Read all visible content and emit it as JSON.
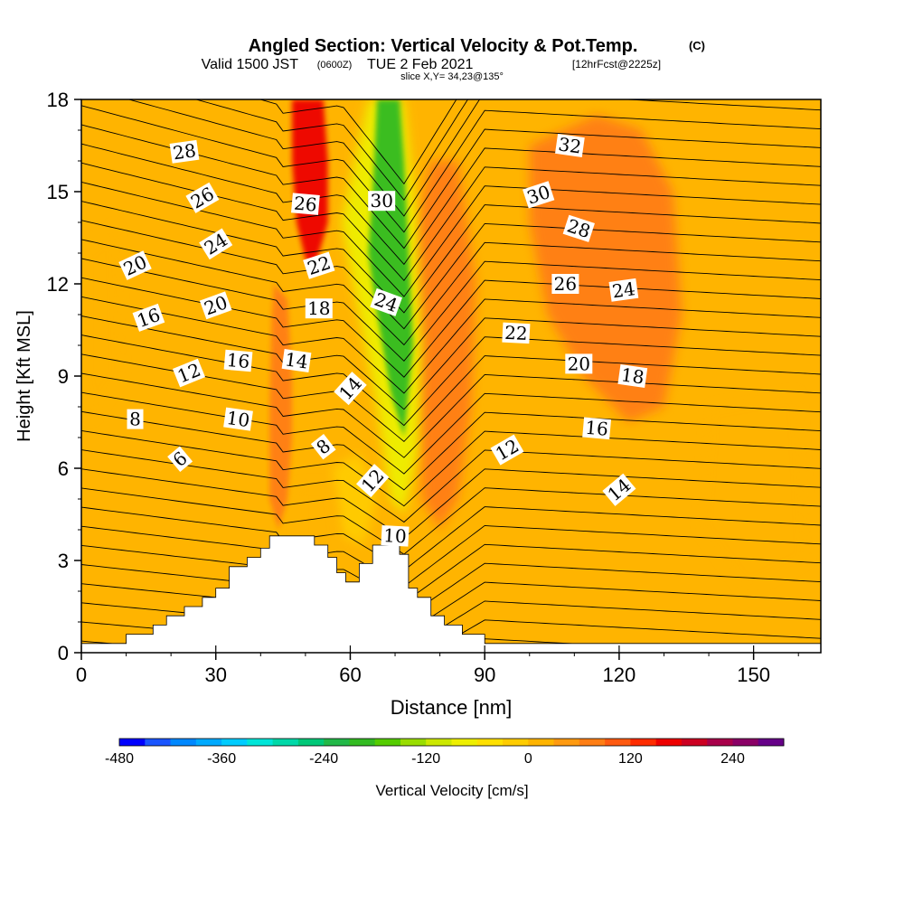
{
  "header": {
    "title_main": "Angled Section: Vertical Velocity & Pot.Temp.",
    "title_tag": "(C)",
    "valid_a": "Valid 1500 JST",
    "valid_b": "(0600Z)",
    "valid_c": "TUE 2 Feb 2021",
    "valid_d": "[12hrFcst@2225z]",
    "slice": "slice X,Y= 34,23@135°"
  },
  "chart_data": {
    "type": "heatmap",
    "title": "Angled Section: Vertical Velocity & Pot.Temp.",
    "xlabel": "Distance [nm]",
    "ylabel": "Height [Kft MSL]",
    "xlim": [
      0,
      165
    ],
    "ylim": [
      0,
      18
    ],
    "xticks": [
      0,
      30,
      60,
      90,
      120,
      150
    ],
    "yticks": [
      0,
      3,
      6,
      9,
      12,
      15,
      18
    ],
    "field": "Vertical Velocity",
    "colorbar": {
      "label": "Vertical Velocity [cm/s]",
      "range": [
        -480,
        300
      ],
      "step": 30,
      "tick_labels": [
        "-480",
        "-360",
        "-240",
        "-120",
        "0",
        "120",
        "240"
      ],
      "tick_values": [
        -480,
        -360,
        -240,
        -120,
        0,
        120,
        240
      ],
      "colors": [
        "#0000ff",
        "#1a55ff",
        "#0088ff",
        "#00aaff",
        "#00ccff",
        "#00e5d8",
        "#00d8a8",
        "#00c878",
        "#22b848",
        "#33bb22",
        "#55cc00",
        "#99dd00",
        "#cce800",
        "#eeef00",
        "#ffe000",
        "#ffcc00",
        "#ffb400",
        "#ff9a10",
        "#ff7e14",
        "#ff5a10",
        "#ff2c00",
        "#ee0000",
        "#cc0022",
        "#a8004a",
        "#8a0066",
        "#660088"
      ]
    },
    "velocity_regions": [
      {
        "name": "updraft-core-high",
        "value": 150
      },
      {
        "name": "updraft-core-low",
        "value": 80
      },
      {
        "name": "downdraft-core",
        "value": -210
      },
      {
        "name": "downdraft-edge",
        "value": -90
      },
      {
        "name": "lee-updraft",
        "value": 60
      },
      {
        "name": "upper-updraft-east",
        "value": 60
      },
      {
        "name": "weak-sink-left",
        "value": -15
      }
    ],
    "contour_field": "Potential Temperature",
    "contour_labels": [
      {
        "text": "28",
        "x": 23,
        "y": 16.3,
        "angle": 8
      },
      {
        "text": "26",
        "x": 27,
        "y": 14.8,
        "angle": 30
      },
      {
        "text": "24",
        "x": 30,
        "y": 13.3,
        "angle": 32
      },
      {
        "text": "20",
        "x": 12,
        "y": 12.6,
        "angle": 25
      },
      {
        "text": "16",
        "x": 15,
        "y": 10.9,
        "angle": 20
      },
      {
        "text": "20",
        "x": 30,
        "y": 11.3,
        "angle": 20
      },
      {
        "text": "12",
        "x": 24,
        "y": 9.1,
        "angle": 22
      },
      {
        "text": "16",
        "x": 35,
        "y": 9.5,
        "angle": -5
      },
      {
        "text": "14",
        "x": 48,
        "y": 9.5,
        "angle": -8
      },
      {
        "text": "8",
        "x": 12,
        "y": 7.6,
        "angle": 0
      },
      {
        "text": "10",
        "x": 35,
        "y": 7.6,
        "angle": -8
      },
      {
        "text": "6",
        "x": 22,
        "y": 6.3,
        "angle": 40
      },
      {
        "text": "26",
        "x": 50,
        "y": 14.6,
        "angle": -5
      },
      {
        "text": "22",
        "x": 53,
        "y": 12.6,
        "angle": 18
      },
      {
        "text": "18",
        "x": 53,
        "y": 11.2,
        "angle": 0
      },
      {
        "text": "14",
        "x": 60,
        "y": 8.6,
        "angle": 48
      },
      {
        "text": "8",
        "x": 54,
        "y": 6.7,
        "angle": 38
      },
      {
        "text": "30",
        "x": 67,
        "y": 14.7,
        "angle": 0
      },
      {
        "text": "24",
        "x": 68,
        "y": 11.4,
        "angle": -20
      },
      {
        "text": "12",
        "x": 65,
        "y": 5.6,
        "angle": 48
      },
      {
        "text": "10",
        "x": 70,
        "y": 3.8,
        "angle": -3
      },
      {
        "text": "32",
        "x": 109,
        "y": 16.5,
        "angle": -8
      },
      {
        "text": "30",
        "x": 102,
        "y": 14.9,
        "angle": 18
      },
      {
        "text": "28",
        "x": 111,
        "y": 13.8,
        "angle": -18
      },
      {
        "text": "26",
        "x": 108,
        "y": 12.0,
        "angle": 0
      },
      {
        "text": "24",
        "x": 121,
        "y": 11.8,
        "angle": 8
      },
      {
        "text": "22",
        "x": 97,
        "y": 10.4,
        "angle": -3
      },
      {
        "text": "20",
        "x": 111,
        "y": 9.4,
        "angle": 0
      },
      {
        "text": "18",
        "x": 123,
        "y": 9.0,
        "angle": -8
      },
      {
        "text": "16",
        "x": 115,
        "y": 7.3,
        "angle": -5
      },
      {
        "text": "12",
        "x": 95,
        "y": 6.6,
        "angle": 30
      },
      {
        "text": "14",
        "x": 120,
        "y": 5.3,
        "angle": 40
      }
    ],
    "terrain": [
      [
        0,
        0.3
      ],
      [
        10,
        0.6
      ],
      [
        16,
        0.9
      ],
      [
        19,
        1.2
      ],
      [
        23,
        1.5
      ],
      [
        27,
        1.8
      ],
      [
        30,
        2.1
      ],
      [
        33,
        2.8
      ],
      [
        37,
        3.1
      ],
      [
        40,
        3.4
      ],
      [
        42,
        3.8
      ],
      [
        52,
        3.5
      ],
      [
        55,
        3.1
      ],
      [
        57,
        2.6
      ],
      [
        59,
        2.3
      ],
      [
        62,
        2.9
      ],
      [
        65,
        3.5
      ],
      [
        71,
        3.2
      ],
      [
        73,
        2.1
      ],
      [
        75,
        1.8
      ],
      [
        78,
        1.2
      ],
      [
        81,
        0.9
      ],
      [
        85,
        0.6
      ],
      [
        90,
        0.3
      ],
      [
        165,
        0.3
      ]
    ],
    "grid": false
  }
}
